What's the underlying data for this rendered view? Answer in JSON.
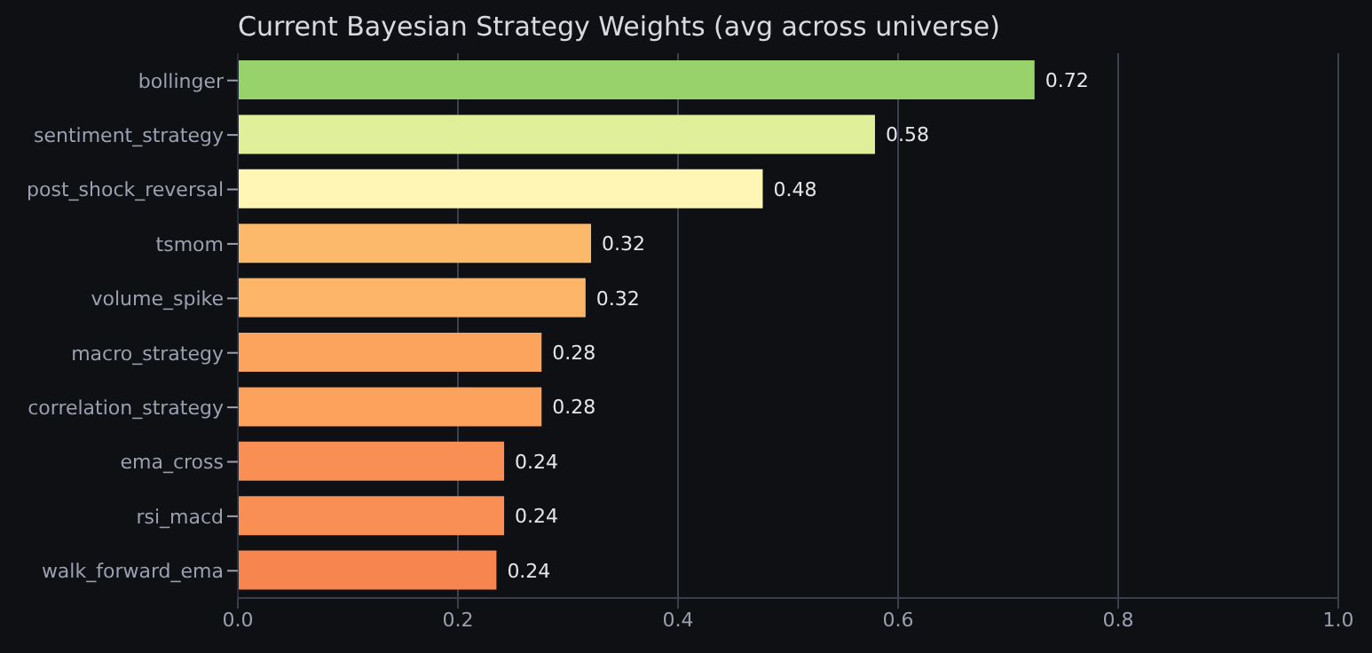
{
  "chart_data": {
    "type": "bar",
    "orientation": "horizontal",
    "title": "Current Bayesian Strategy Weights (avg across universe)",
    "categories": [
      "bollinger",
      "sentiment_strategy",
      "post_shock_reversal",
      "tsmom",
      "volume_spike",
      "macro_strategy",
      "correlation_strategy",
      "ema_cross",
      "rsi_macd",
      "walk_forward_ema"
    ],
    "values": [
      0.724,
      0.579,
      0.477,
      0.321,
      0.316,
      0.276,
      0.276,
      0.242,
      0.242,
      0.235
    ],
    "value_labels": [
      "0.72",
      "0.58",
      "0.48",
      "0.32",
      "0.32",
      "0.28",
      "0.28",
      "0.24",
      "0.24",
      "0.24"
    ],
    "colors": [
      "#98d26a",
      "#e0f09a",
      "#fff6b5",
      "#fdb96b",
      "#fdb56a",
      "#fca35d",
      "#fca25c",
      "#fa8f56",
      "#fa8f56",
      "#f7854f"
    ],
    "xlim": [
      0,
      1
    ],
    "xticks": [
      {
        "value": 0,
        "label": "0.0"
      },
      {
        "value": 0.2,
        "label": "0.2"
      },
      {
        "value": 0.4,
        "label": "0.4"
      },
      {
        "value": 0.6,
        "label": "0.6"
      },
      {
        "value": 0.8,
        "label": "0.8"
      },
      {
        "value": 1,
        "label": "1.0"
      }
    ],
    "grid": "x"
  }
}
